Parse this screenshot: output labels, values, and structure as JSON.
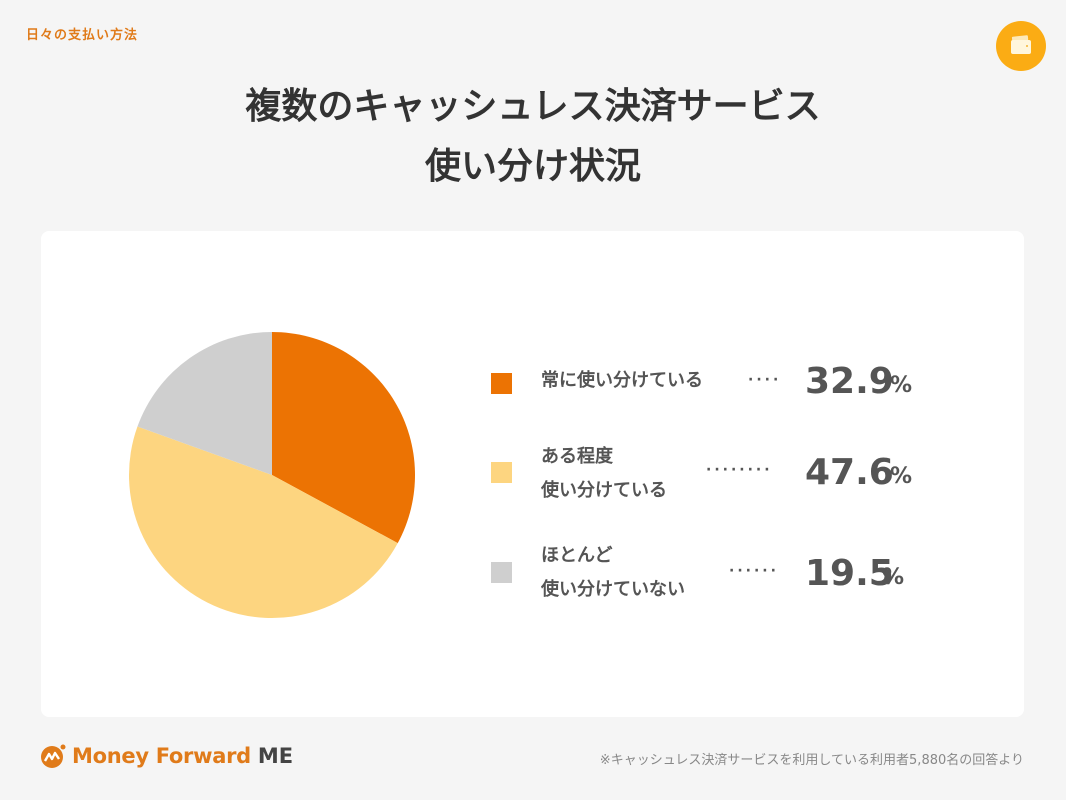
{
  "header": {
    "category": "日々の支払い方法",
    "icon": "wallet-icon",
    "title_line1": "複数のキャッシュレス決済サービス",
    "title_line2": "使い分け状況"
  },
  "colors": {
    "accent": "#e07b1a",
    "badge": "#fbac14",
    "slice_always": "#ec7303",
    "slice_somewhat": "#fdd580",
    "slice_rarely": "#cfcfcf"
  },
  "legend": [
    {
      "label_line1": "常に使い分けている",
      "label_line2": "",
      "dots": "····",
      "value": "32.9",
      "unit": "%"
    },
    {
      "label_line1": "ある程度",
      "label_line2": "使い分けている",
      "dots": "········",
      "value": "47.6",
      "unit": "%"
    },
    {
      "label_line1": "ほとんど",
      "label_line2": "使い分けていない",
      "dots": "······",
      "value": "19.5",
      "unit": "%"
    }
  ],
  "footer": {
    "logo_brand": "Money Forward",
    "logo_suffix": "ME",
    "note": "※キャッシュレス決済サービスを利用している利用者5,880名の回答より"
  },
  "chart_data": {
    "type": "pie",
    "title": "複数のキャッシュレス決済サービス 使い分け状況",
    "categories": [
      "常に使い分けている",
      "ある程度使い分けている",
      "ほとんど使い分けていない"
    ],
    "values": [
      32.9,
      47.6,
      19.5
    ],
    "unit": "%",
    "colors": [
      "#ec7303",
      "#fdd580",
      "#cfcfcf"
    ],
    "start_angle": "12 o'clock, clockwise",
    "legend_position": "right",
    "note": "※キャッシュレス決済サービスを利用している利用者5,880名の回答より"
  }
}
